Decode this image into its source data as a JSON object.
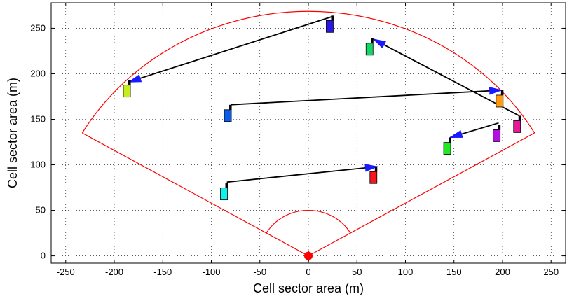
{
  "chart_data": {
    "type": "scatter",
    "title": "",
    "xlabel": "Cell sector area (m)",
    "ylabel": "Cell sector area (m)",
    "xlim": [
      -265,
      265
    ],
    "ylim": [
      -8,
      278
    ],
    "xticks": [
      -250,
      -200,
      -150,
      -100,
      -50,
      0,
      50,
      100,
      150,
      200,
      250
    ],
    "yticks": [
      0,
      50,
      100,
      150,
      200,
      250
    ],
    "grid": true,
    "sector": {
      "radius": 270,
      "left_edge_end": [
        -233,
        135
      ],
      "right_edge_end": [
        233,
        135
      ],
      "inner_arc_radius": 50,
      "color": "#ff0000"
    },
    "base_station": {
      "x": 0,
      "y": 0,
      "color": "#ff0000"
    },
    "users": [
      {
        "x": -187,
        "y": 181,
        "color": "#c5ee1c"
      },
      {
        "x": 22,
        "y": 252,
        "color": "#2a16e8"
      },
      {
        "x": 63,
        "y": 227,
        "color": "#12d965"
      },
      {
        "x": -83,
        "y": 154,
        "color": "#0a5ee8"
      },
      {
        "x": 197,
        "y": 170,
        "color": "#ff9a12"
      },
      {
        "x": 215,
        "y": 142,
        "color": "#e8189c"
      },
      {
        "x": 194,
        "y": 132,
        "color": "#b011df"
      },
      {
        "x": 143,
        "y": 118,
        "color": "#22e822"
      },
      {
        "x": 67,
        "y": 86,
        "color": "#f5161e"
      },
      {
        "x": -87,
        "y": 68,
        "color": "#12f2e8"
      }
    ],
    "links": [
      {
        "from": [
          25,
          263
        ],
        "to": [
          -185,
          191
        ]
      },
      {
        "from": [
          217,
          154
        ],
        "to": [
          67,
          238
        ]
      },
      {
        "from": [
          -80,
          166
        ],
        "to": [
          199,
          182
        ]
      },
      {
        "from": [
          196,
          146
        ],
        "to": [
          146,
          130
        ]
      },
      {
        "from": [
          -84,
          81
        ],
        "to": [
          71,
          98
        ]
      }
    ]
  }
}
